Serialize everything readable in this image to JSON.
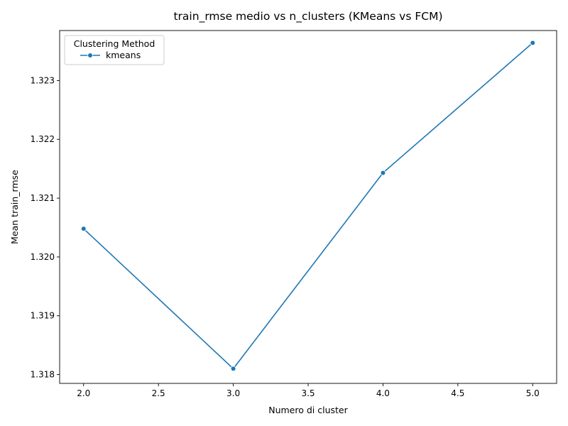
{
  "chart_data": {
    "type": "line",
    "title": "train_rmse medio vs n_clusters (KMeans vs FCM)",
    "xlabel": "Numero di cluster",
    "ylabel": "Mean train_rmse",
    "xlim": [
      1.84,
      5.16
    ],
    "ylim": [
      1.31785,
      1.32385
    ],
    "xticks": [
      2.0,
      2.5,
      3.0,
      3.5,
      4.0,
      4.5,
      5.0
    ],
    "xtick_labels": [
      "2.0",
      "2.5",
      "3.0",
      "3.5",
      "4.0",
      "4.5",
      "5.0"
    ],
    "yticks": [
      1.318,
      1.319,
      1.32,
      1.321,
      1.322,
      1.323
    ],
    "ytick_labels": [
      "1.318",
      "1.319",
      "1.320",
      "1.321",
      "1.322",
      "1.323"
    ],
    "legend": {
      "title": "Clustering Method",
      "placement": "top-left"
    },
    "grid": false,
    "series": [
      {
        "name": "kmeans",
        "color": "#1f77b4",
        "marker": "circle",
        "x": [
          2,
          3,
          4,
          5
        ],
        "y": [
          1.32048,
          1.3181,
          1.32143,
          1.32364
        ]
      }
    ]
  }
}
